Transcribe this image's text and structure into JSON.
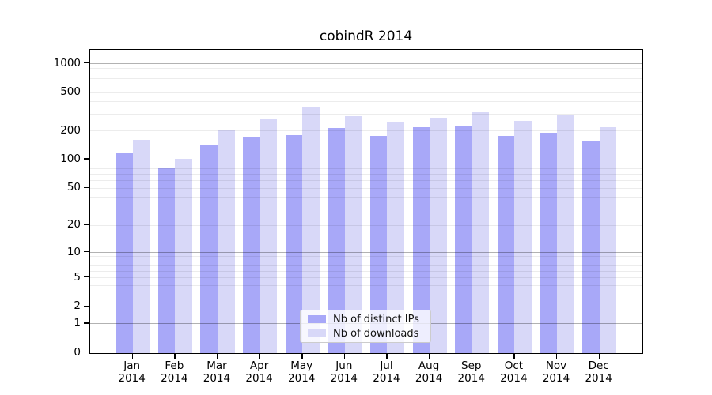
{
  "figure": {
    "title": "cobindR 2014"
  },
  "chart_data": {
    "type": "bar",
    "title": "cobindR 2014",
    "categories": [
      "Jan",
      "Feb",
      "Mar",
      "Apr",
      "May",
      "Jun",
      "Jul",
      "Aug",
      "Sep",
      "Oct",
      "Nov",
      "Dec"
    ],
    "year": "2014",
    "series": [
      {
        "name": "Nb of distinct IPs",
        "color": "#a8a8f8",
        "values": [
          115,
          80,
          140,
          168,
          180,
          210,
          175,
          215,
          220,
          175,
          190,
          155
        ]
      },
      {
        "name": "Nb of downloads",
        "color": "#d8d8f8",
        "values": [
          160,
          100,
          205,
          260,
          350,
          280,
          245,
          270,
          310,
          250,
          290,
          215
        ]
      }
    ],
    "xlabel": "",
    "ylabel": "",
    "y_scale": "log10(x+1)",
    "y_ticks": [
      1000,
      500,
      200,
      100,
      50,
      20,
      10,
      5,
      2,
      1,
      0
    ],
    "major_gridlines": [
      1,
      10,
      100,
      1000
    ],
    "minor_gridline_decades": [
      1,
      10,
      100
    ],
    "ylim": [
      0,
      1390
    ],
    "grid": true,
    "legend_position": "lower center"
  }
}
